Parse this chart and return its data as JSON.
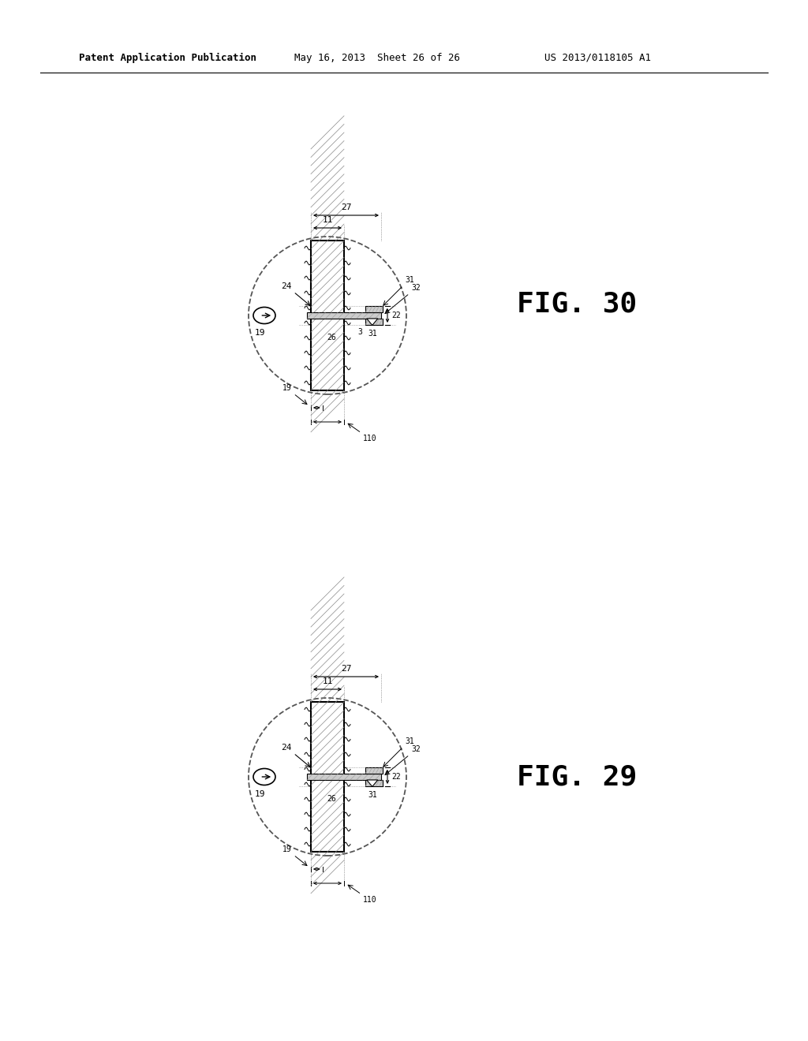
{
  "bg_color": "#ffffff",
  "header_text": "Patent Application Publication",
  "header_date": "May 16, 2013  Sheet 26 of 26",
  "header_patent": "US 2013/0118105 A1",
  "line_color": "#000000"
}
